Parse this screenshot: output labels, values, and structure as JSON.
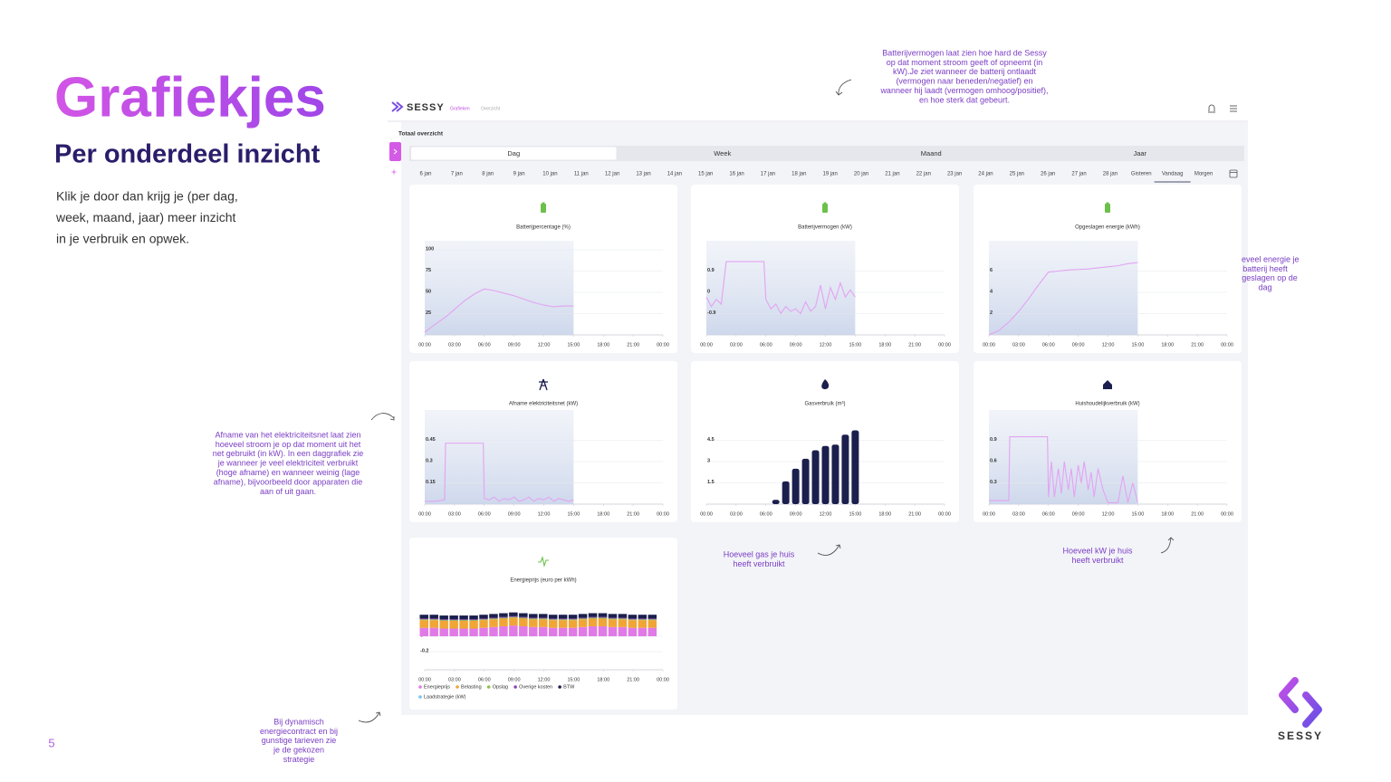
{
  "slide": {
    "title": "Grafiekjes",
    "subtitle": "Per onderdeel inzicht",
    "body": [
      "Klik je door dan krijg je (per dag,",
      "week, maand, jaar) meer inzicht",
      "in je verbruik en opwek."
    ],
    "page_number": "5",
    "logo": "SESSY"
  },
  "annotations": [
    {
      "lines": [
        "Batterijvermogen laat zien hoe hard de Sessy",
        "op dat moment stroom geeft of opneemt (in",
        "kW).Je ziet wanneer de batterij ontlaadt",
        "(vermogen naar beneden/negatief) en",
        "wanneer hij laadt (vermogen omhoog/positief),",
        "en hoe sterk dat gebeurt."
      ]
    },
    {
      "lines": [
        "Hoeveel energie je",
        "batterij heeft",
        "opgeslagen op de",
        "dag"
      ]
    },
    {
      "lines": [
        "Afname van het elektriciteitsnet laat zien",
        "hoeveel stroom je op dat moment uit het",
        "net gebruikt (in kW). In een daggrafiek zie",
        "je wanneer je veel elektriciteit verbruikt",
        "(hoge afname) en wanneer weinig (lage",
        "afname), bijvoorbeeld door apparaten die",
        "aan of uit gaan."
      ]
    },
    {
      "lines": [
        "Hoeveel gas je huis",
        "heeft verbruikt"
      ]
    },
    {
      "lines": [
        "Hoeveel kW je huis",
        "heeft verbruikt"
      ]
    },
    {
      "lines": [
        "Bij dynamisch",
        "energiecontract en bij",
        "gunstige tarieven zie",
        "je de gekozen",
        "strategie"
      ]
    }
  ],
  "app": {
    "logo": "SESSY",
    "nav": [
      "Grafieken",
      "Overzicht"
    ],
    "section": "Totaal overzicht",
    "periods": [
      "Dag",
      "Week",
      "Maand",
      "Jaar"
    ],
    "active_period": 0,
    "dates": [
      "6 jan",
      "7 jan",
      "8 jan",
      "9 jan",
      "10 jan",
      "11 jan",
      "12 jan",
      "13 jan",
      "14 jan",
      "15 jan",
      "16 jan",
      "17 jan",
      "18 jan",
      "19 jan",
      "20 jan",
      "21 jan",
      "22 jan",
      "23 jan",
      "24 jan",
      "25 jan",
      "26 jan",
      "27 jan",
      "28 jan",
      "Gisteren",
      "Vandaag",
      "Morgen"
    ],
    "active_date": 24,
    "xlim": [
      0,
      24
    ],
    "xticks": [
      {
        "value": 0,
        "label": "00:00"
      },
      {
        "value": 3,
        "label": "03:00"
      },
      {
        "value": 6,
        "label": "06:00"
      },
      {
        "value": 9,
        "label": "09:00"
      },
      {
        "value": 12,
        "label": "12:00"
      },
      {
        "value": 15,
        "label": "15:00"
      },
      {
        "value": 18,
        "label": "18:00"
      },
      {
        "value": 21,
        "label": "21:00"
      },
      {
        "value": 24,
        "label": "00:00"
      }
    ],
    "charts": [
      {
        "type": "line",
        "title": "Batterijpercentage (%)",
        "color": "#e3a3f2",
        "x": [
          0,
          1,
          2,
          3,
          4,
          5,
          6,
          7,
          8,
          9,
          10,
          11,
          12,
          13,
          14,
          15
        ],
        "values": [
          3,
          12,
          20,
          30,
          40,
          48,
          54,
          52,
          49,
          46,
          42,
          38,
          35,
          33,
          34,
          34
        ],
        "ylim": [
          0,
          100
        ],
        "yticks": [
          100,
          75,
          50,
          25
        ]
      },
      {
        "type": "line",
        "title": "Batterijvermogen (kW)",
        "color": "#e3a3f2",
        "x": [
          0,
          0.5,
          1,
          1.5,
          2,
          2.5,
          4,
          5.8,
          6,
          6.5,
          7,
          7.5,
          8,
          8.5,
          9,
          9.5,
          10,
          10.5,
          11,
          11.5,
          12,
          12.5,
          13,
          13.5,
          14,
          14.5,
          15
        ],
        "values": [
          -0.2,
          -0.6,
          -0.3,
          -0.5,
          1.3,
          1.3,
          1.3,
          1.3,
          -0.3,
          -0.7,
          -0.5,
          -0.9,
          -0.6,
          -0.8,
          -0.7,
          -0.9,
          -0.4,
          -0.8,
          -0.6,
          0.3,
          -0.7,
          0.2,
          -0.3,
          0.4,
          -0.2,
          0.1,
          -0.2
        ],
        "ylim": [
          -1.8,
          1.8
        ],
        "yticks": [
          0.9,
          0,
          -0.9
        ]
      },
      {
        "type": "line",
        "title": "Opgeslagen energie (kWh)",
        "color": "#e3a3f2",
        "x": [
          0,
          1,
          2,
          3,
          4,
          5,
          6,
          7,
          8,
          9,
          10,
          11,
          12,
          13,
          14,
          15
        ],
        "values": [
          0,
          0.4,
          1.2,
          2.2,
          3.4,
          4.7,
          5.9,
          6,
          6.1,
          6.15,
          6.2,
          6.3,
          6.4,
          6.5,
          6.7,
          6.8
        ],
        "ylim": [
          0,
          8
        ],
        "yticks": [
          6,
          4,
          2
        ]
      },
      {
        "type": "line",
        "title": "Afname elektriciteitsnet (kW)",
        "color": "#e3a3f2",
        "x": [
          0,
          1,
          2,
          2.1,
          5.9,
          6,
          6.5,
          7,
          7.5,
          8,
          8.5,
          9,
          9.5,
          10,
          10.5,
          11,
          11.5,
          12,
          12.5,
          13,
          13.5,
          14,
          14.5,
          15
        ],
        "values": [
          0.02,
          0.02,
          0.03,
          0.43,
          0.43,
          0.04,
          0.03,
          0.05,
          0.02,
          0.04,
          0.03,
          0.05,
          0.02,
          0.03,
          0.05,
          0.02,
          0.04,
          0.03,
          0.05,
          0.02,
          0.04,
          0.03,
          0.02,
          0.03
        ],
        "ylim": [
          0,
          0.6
        ],
        "yticks": [
          0.45,
          0.3,
          0.15
        ]
      },
      {
        "type": "bar",
        "title": "Gasverbruik (m³)",
        "color": "#1b1f4d",
        "x": [
          7,
          8,
          9,
          10,
          11,
          12,
          13,
          14,
          15
        ],
        "values": [
          0.3,
          1.6,
          2.5,
          3.2,
          3.8,
          4.1,
          4.2,
          4.9,
          5.2
        ],
        "ylim": [
          0,
          6
        ],
        "yticks": [
          4.5,
          3,
          1.5
        ]
      },
      {
        "type": "line",
        "title": "Huishoudelijkverbruik (kW)",
        "color": "#e3a3f2",
        "x": [
          0,
          1,
          2,
          2.1,
          5.9,
          6,
          6.3,
          6.6,
          7,
          7.3,
          7.6,
          8,
          8.3,
          8.6,
          9,
          9.3,
          9.6,
          10,
          10.3,
          10.6,
          11,
          11.5,
          12,
          12.5,
          13,
          13.5,
          14,
          14.5,
          15
        ],
        "values": [
          0.05,
          0.05,
          0.05,
          0.95,
          0.95,
          0.1,
          0.6,
          0.1,
          0.5,
          0.15,
          0.6,
          0.2,
          0.5,
          0.1,
          0.55,
          0.3,
          0.6,
          0.2,
          0.45,
          0.1,
          0.5,
          0.2,
          0.02,
          0.02,
          0.02,
          0.4,
          0.02,
          0.3,
          0.02
        ],
        "ylim": [
          0,
          1.2
        ],
        "yticks": [
          0.9,
          0.6,
          0.3
        ]
      }
    ],
    "price_chart": {
      "type": "stacked-bar",
      "title": "Energieprijs (euro per kWh)",
      "x": [
        0,
        1,
        2,
        3,
        4,
        5,
        6,
        7,
        8,
        9,
        10,
        11,
        12,
        13,
        14,
        15,
        16,
        17,
        18,
        19,
        20,
        21,
        22,
        23
      ],
      "ylim": [
        -0.4,
        0.6
      ],
      "yticks": [
        0,
        -0.2
      ],
      "series": [
        {
          "name": "Energieprijs",
          "color": "#e07ae6",
          "values": [
            0.11,
            0.11,
            0.1,
            0.1,
            0.1,
            0.1,
            0.11,
            0.12,
            0.13,
            0.14,
            0.13,
            0.12,
            0.12,
            0.11,
            0.11,
            0.11,
            0.12,
            0.13,
            0.13,
            0.12,
            0.12,
            0.11,
            0.11,
            0.11
          ]
        },
        {
          "name": "Belasting",
          "color": "#f0a536",
          "values": [
            0.1,
            0.1,
            0.1,
            0.1,
            0.1,
            0.1,
            0.1,
            0.1,
            0.1,
            0.1,
            0.1,
            0.1,
            0.1,
            0.1,
            0.1,
            0.1,
            0.1,
            0.1,
            0.1,
            0.1,
            0.1,
            0.1,
            0.1,
            0.1
          ]
        },
        {
          "name": "Opslag",
          "color": "#8bc34a",
          "values": [
            0.01,
            0.01,
            0.01,
            0.01,
            0.01,
            0.01,
            0.01,
            0.01,
            0.01,
            0.01,
            0.01,
            0.01,
            0.01,
            0.01,
            0.01,
            0.01,
            0.01,
            0.01,
            0.01,
            0.01,
            0.01,
            0.01,
            0.01,
            0.01
          ]
        },
        {
          "name": "Overige kosten",
          "color": "#8e44ad",
          "values": [
            0.01,
            0.01,
            0.01,
            0.01,
            0.01,
            0.01,
            0.01,
            0.01,
            0.01,
            0.01,
            0.01,
            0.01,
            0.01,
            0.01,
            0.01,
            0.01,
            0.01,
            0.01,
            0.01,
            0.01,
            0.01,
            0.01,
            0.01,
            0.01
          ]
        },
        {
          "name": "BTW",
          "color": "#1b1f4d",
          "values": [
            0.05,
            0.05,
            0.05,
            0.05,
            0.05,
            0.05,
            0.05,
            0.05,
            0.05,
            0.05,
            0.05,
            0.05,
            0.05,
            0.05,
            0.05,
            0.05,
            0.05,
            0.05,
            0.05,
            0.05,
            0.05,
            0.05,
            0.05,
            0.05
          ]
        }
      ],
      "extra_legend": {
        "name": "Laadstrategie (kW)",
        "color": "#6ec6f0"
      }
    }
  }
}
